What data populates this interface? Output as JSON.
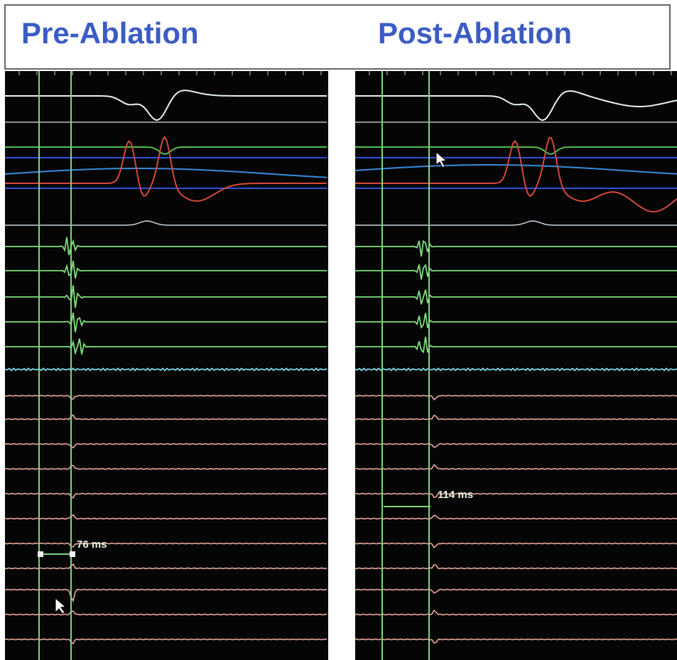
{
  "header": {
    "left_title": "Pre-Ablation",
    "right_title": "Post-Ablation"
  },
  "panels": [
    {
      "measurement": "76 ms"
    },
    {
      "measurement": "114 ms"
    }
  ]
}
